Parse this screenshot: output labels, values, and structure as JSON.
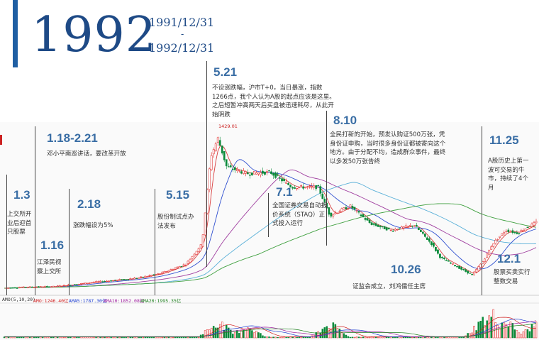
{
  "header": {
    "year": "1992",
    "range_start": "1991/12/31",
    "range_sep": "-",
    "range_end": "1992/12/31"
  },
  "annotations": [
    {
      "date": "1.3",
      "text": "上交所开业后迎首只股票"
    },
    {
      "date": "1.16",
      "text": "江泽民视察上交所"
    },
    {
      "date": "1.18-2.21",
      "text": "邓小平南巡讲话，要改革开放"
    },
    {
      "date": "2.18",
      "text": "涨跌幅设为5%"
    },
    {
      "date": "5.15",
      "text": "股份制试点办法发布"
    },
    {
      "date": "5.21",
      "text": "不设涨跌幅，沪市T+0，当日暴涨，指数1266点，我个人认为A股的起点应该是这里。之后短暂冲高两天后买盘被迅速耗尽，从此开始阴跌"
    },
    {
      "date": "7.1",
      "text": "全国证券交易自动报价系统（STAQ）正式投入运行"
    },
    {
      "date": "8.10",
      "text": "全民打新的开始，预发认购证500万张，凭身份证申购，当时很多身份证都被寄向这个地方。由于分配不均，造成群众事件，最终以多发50万张告终"
    },
    {
      "date": "10.26",
      "text": "证监会成立，刘鸿儒任主席"
    },
    {
      "date": "11.25",
      "text": "A股历史上第一波可交易的牛市，持续了4个月"
    },
    {
      "date": "12.1",
      "text": "股票买卖实行整数交易"
    }
  ],
  "indicators": {
    "amo_title": "AMO(5,10,20)",
    "amo": "AMO:1246.40亿",
    "ama5": "AMA5:1787.30亿",
    "ama10": "AMA10:1852.08亿",
    "ama20": "AMA20:1995.35亿",
    "colors": {
      "amo": "#d02020",
      "ama5": "#1a3bd0",
      "ama10": "#a020a0",
      "ama20": "#208020"
    }
  },
  "chart_data": {
    "type": "candlestick",
    "title": "",
    "peak_label": "1429.01",
    "x_range": [
      "1991-12-31",
      "1992-12-31"
    ],
    "ylim": [
      250,
      1500
    ],
    "close_series": [
      [
        "1991-12-31",
        292
      ],
      [
        "1992-01-03",
        294
      ],
      [
        "1992-01-16",
        300
      ],
      [
        "1992-02-03",
        304
      ],
      [
        "1992-02-18",
        320
      ],
      [
        "1992-03-02",
        337
      ],
      [
        "1992-03-16",
        350
      ],
      [
        "1992-04-01",
        368
      ],
      [
        "1992-04-16",
        400
      ],
      [
        "1992-05-04",
        470
      ],
      [
        "1992-05-15",
        619
      ],
      [
        "1992-05-21",
        1266
      ],
      [
        "1992-05-26",
        1400
      ],
      [
        "1992-06-01",
        1190
      ],
      [
        "1992-06-15",
        1140
      ],
      [
        "1992-07-01",
        1150
      ],
      [
        "1992-07-16",
        1040
      ],
      [
        "1992-08-03",
        1040
      ],
      [
        "1992-08-11",
        830
      ],
      [
        "1992-08-25",
        900
      ],
      [
        "1992-09-08",
        770
      ],
      [
        "1992-09-22",
        720
      ],
      [
        "1992-10-08",
        760
      ],
      [
        "1992-10-20",
        620
      ],
      [
        "1992-10-26",
        520
      ],
      [
        "1992-11-10",
        430
      ],
      [
        "1992-11-17",
        390
      ],
      [
        "1992-11-25",
        500
      ],
      [
        "1992-12-01",
        620
      ],
      [
        "1992-12-10",
        720
      ],
      [
        "1992-12-18",
        700
      ],
      [
        "1992-12-31",
        780
      ]
    ],
    "volume_series": [
      [
        "1992-05-26",
        0.7
      ],
      [
        "1992-06-15",
        0.5
      ],
      [
        "1992-08-11",
        0.6
      ],
      [
        "1992-11-25",
        0.8
      ],
      [
        "1992-12-01",
        1.0
      ],
      [
        "1992-12-10",
        0.75
      ],
      [
        "1992-12-31",
        0.6
      ]
    ]
  }
}
